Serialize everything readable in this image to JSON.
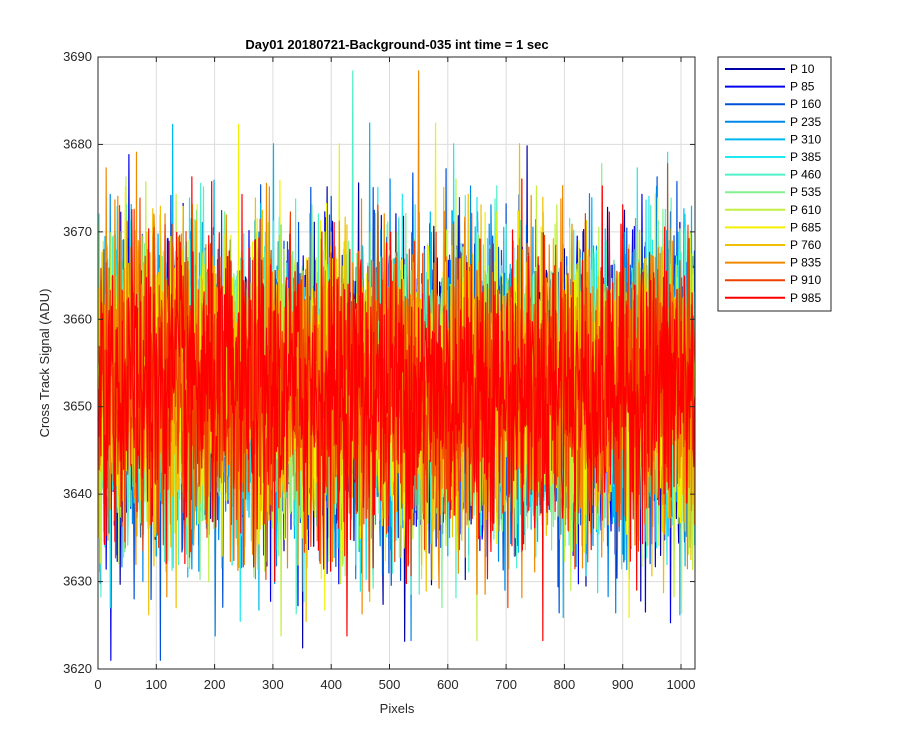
{
  "chart_data": {
    "type": "line",
    "title": "Day01 20180721-Background-035 int time = 1 sec",
    "xlabel": "Pixels",
    "ylabel": "Cross Track Signal (ADU)",
    "xlim": [
      0,
      1024
    ],
    "ylim": [
      3620,
      3690
    ],
    "xticks": [
      0,
      100,
      200,
      300,
      400,
      500,
      600,
      700,
      800,
      900,
      1000
    ],
    "yticks": [
      3620,
      3630,
      3640,
      3650,
      3660,
      3670,
      3680,
      3690
    ],
    "grid": true,
    "legend_position": "outside-top-right",
    "series_note_mean": 3652,
    "series": [
      {
        "name": "P 10",
        "color": "#0000a8"
      },
      {
        "name": "P 85",
        "color": "#0000ee"
      },
      {
        "name": "P 160",
        "color": "#0050d8"
      },
      {
        "name": "P 235",
        "color": "#0088e8"
      },
      {
        "name": "P 310",
        "color": "#00b8f0"
      },
      {
        "name": "P 385",
        "color": "#20e8f0"
      },
      {
        "name": "P 460",
        "color": "#50f0c8"
      },
      {
        "name": "P 535",
        "color": "#80f090"
      },
      {
        "name": "P 610",
        "color": "#c0f040"
      },
      {
        "name": "P 685",
        "color": "#f0f000"
      },
      {
        "name": "P 760",
        "color": "#f0c000"
      },
      {
        "name": "P 835",
        "color": "#f08800"
      },
      {
        "name": "P 910",
        "color": "#f04000"
      },
      {
        "name": "P 985",
        "color": "#ff0000"
      }
    ]
  }
}
